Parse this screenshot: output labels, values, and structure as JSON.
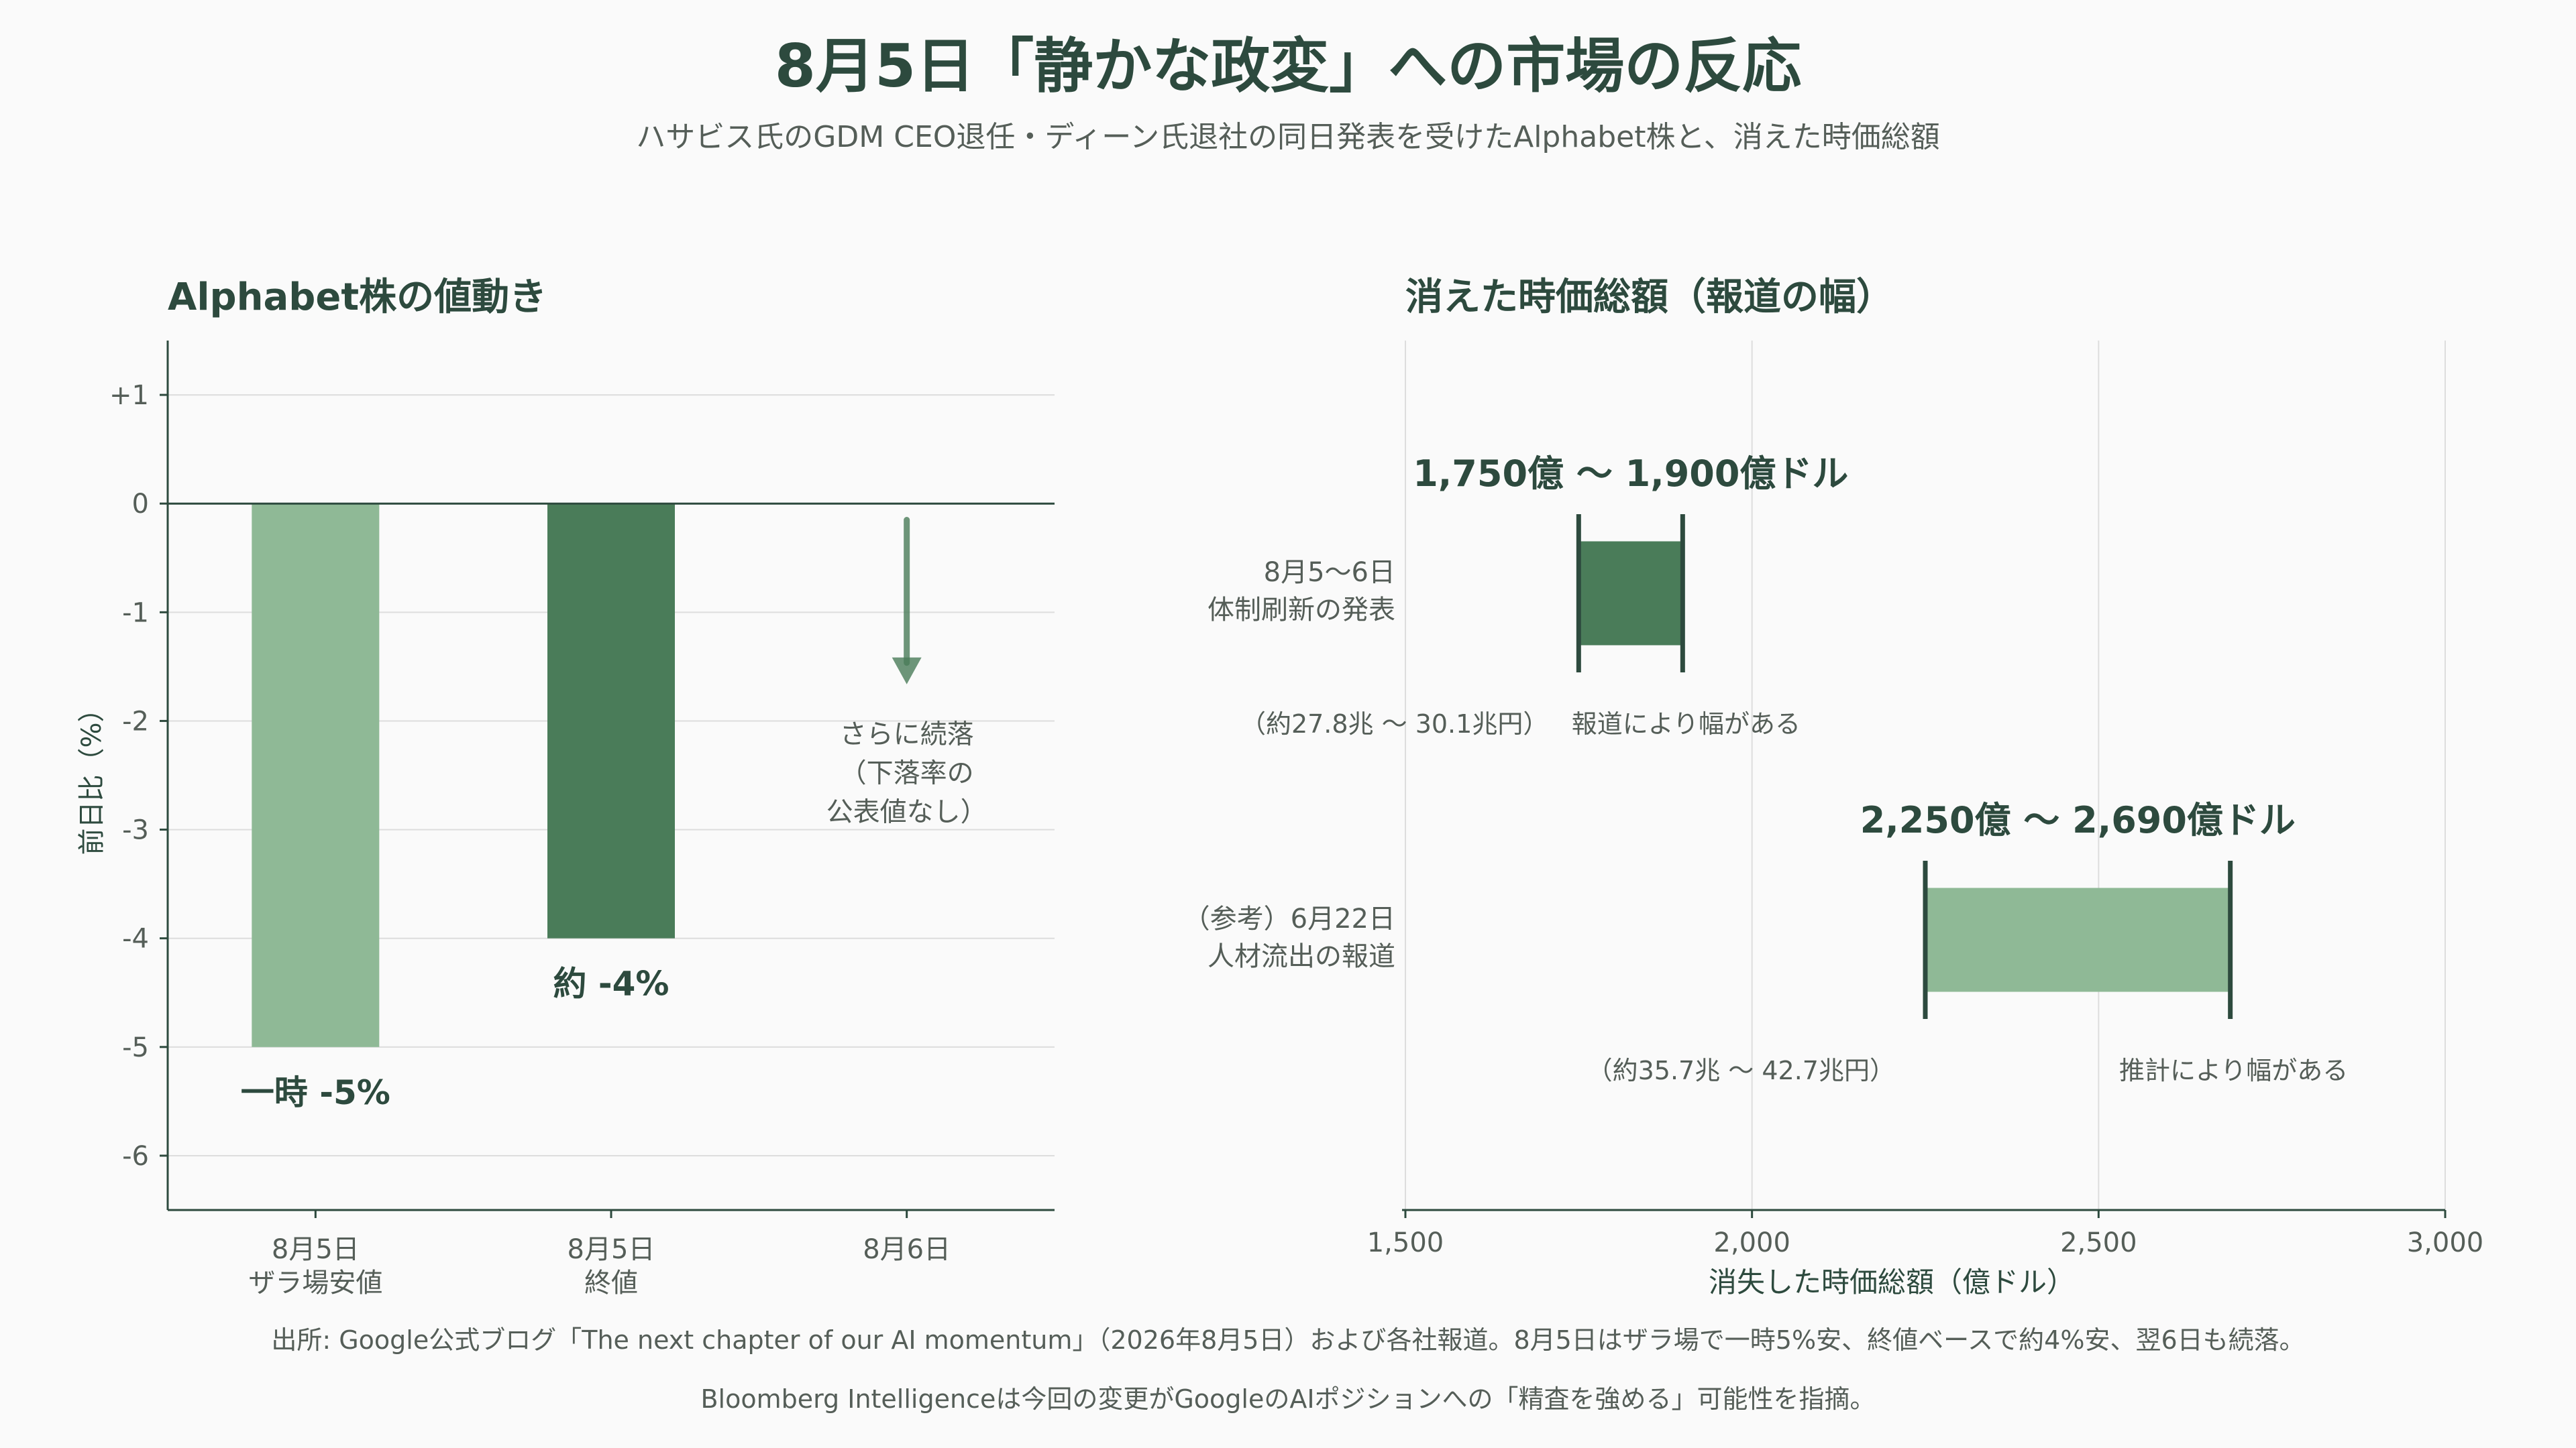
{
  "title": "8月5日「静かな政変」への市場の反応",
  "subtitle": "ハサビス氏のGDM CEO退任・ディーン氏退社の同日発表を受けたAlphabet株と、消えた時価総額",
  "colors": {
    "dark_green": "#4a7c59",
    "light_green": "#8fb996",
    "text": "#2d4a3e",
    "muted": "#555e58",
    "axis": "#2d4a3e",
    "grid": "#dddddd"
  },
  "footer": {
    "line1": "出所: Google公式ブログ「The next chapter of our AI momentum」（2026年8月5日）および各社報道。8月5日はザラ場で一時5%安、終値ベースで約4%安、翌6日も続落。",
    "line2": "Bloomberg Intelligenceは今回の変更がGoogleのAIポジションへの「精査を強める」可能性を指摘。"
  },
  "chart_data": [
    {
      "type": "bar",
      "title": "Alphabet株の値動き",
      "ylabel": "前日比（%）",
      "ylim": [
        -6.5,
        1.5
      ],
      "yticks": [
        1,
        0,
        -1,
        -2,
        -3,
        -4,
        -5,
        -6
      ],
      "ytick_labels": [
        "+1",
        "0",
        "-1",
        "-2",
        "-3",
        "-4",
        "-5",
        "-6"
      ],
      "categories": [
        {
          "line1": "8月5日",
          "line2": "ザラ場安値"
        },
        {
          "line1": "8月5日",
          "line2": "終値"
        },
        {
          "line1": "8月6日",
          "line2": ""
        }
      ],
      "values": [
        -5,
        -4,
        null
      ],
      "bar_colors": [
        "#8fb996",
        "#4a7c59",
        null
      ],
      "data_labels": [
        "一時 -5%",
        "約 -4%",
        ""
      ],
      "annotation": {
        "category_index": 2,
        "arrow_from": -0.15,
        "arrow_to": -1.65,
        "lines": [
          "さらに続落",
          "（下落率の",
          "公表値なし）"
        ]
      },
      "grid": true
    },
    {
      "type": "range",
      "title": "消えた時価総額（報道の幅）",
      "xlabel": "消失した時価総額（億ドル）",
      "xlim": [
        1500,
        3000
      ],
      "xticks": [
        1500,
        2000,
        2500,
        3000
      ],
      "xtick_labels": [
        "1,500",
        "2,000",
        "2,500",
        "3,000"
      ],
      "grid": true,
      "ranges": [
        {
          "label_line1": "8月5〜6日",
          "label_line2": "体制刷新の発表",
          "low": 1750,
          "high": 1900,
          "color": "#4a7c59",
          "range_label": "1,750億 〜 1,900億ドル",
          "yen_note": "（約27.8兆 〜 30.1兆円）",
          "note": "報道により幅がある"
        },
        {
          "label_line1": "（参考）6月22日",
          "label_line2": "人材流出の報道",
          "low": 2250,
          "high": 2690,
          "color": "#8fb996",
          "range_label": "2,250億 〜 2,690億ドル",
          "yen_note": "（約35.7兆 〜 42.7兆円）",
          "note": "推計により幅がある"
        }
      ]
    }
  ]
}
